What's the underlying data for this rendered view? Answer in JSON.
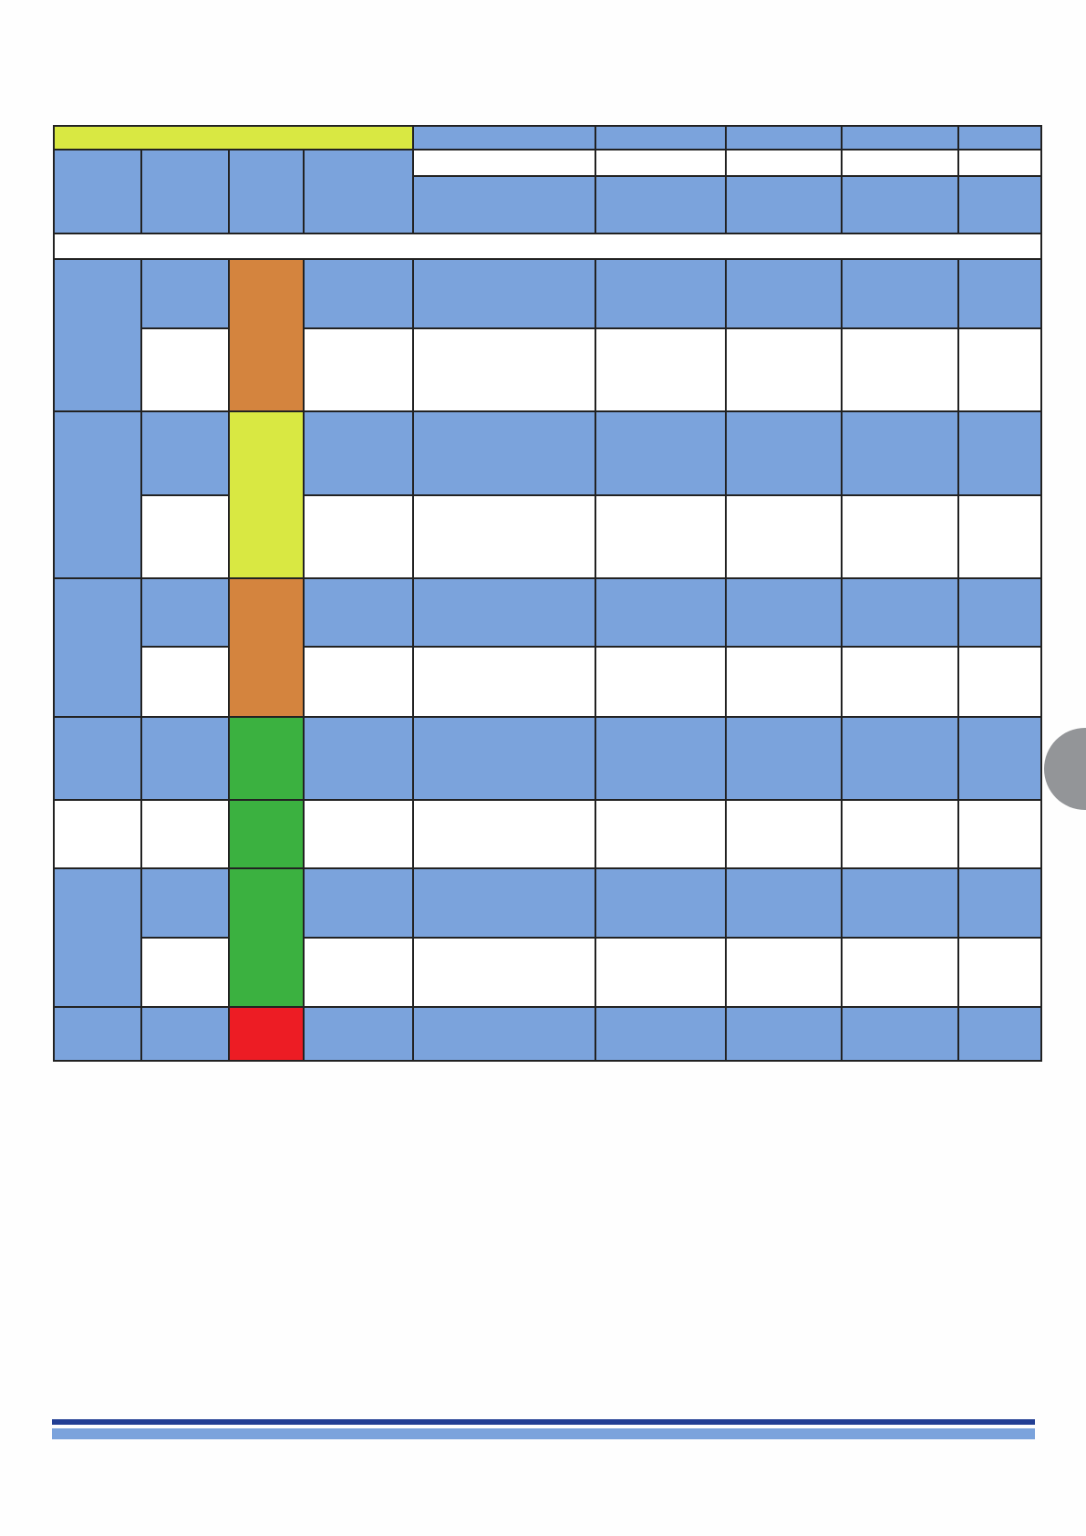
{
  "colors": {
    "header_blue": "#7ba3dc",
    "highlight_yellow": "#d9e842",
    "status_orange": "#d4843e",
    "status_yellow": "#d9e842",
    "status_green": "#3bb140",
    "status_red": "#ed1c24",
    "footer_rule_dark": "#233f94",
    "footer_rule_light": "#7ba3dc",
    "side_tab_grey": "#939598"
  },
  "table": {
    "column_count": 9,
    "status_column_colors": [
      "orange",
      "yellow",
      "orange",
      "green",
      "green",
      "green",
      "red"
    ]
  }
}
